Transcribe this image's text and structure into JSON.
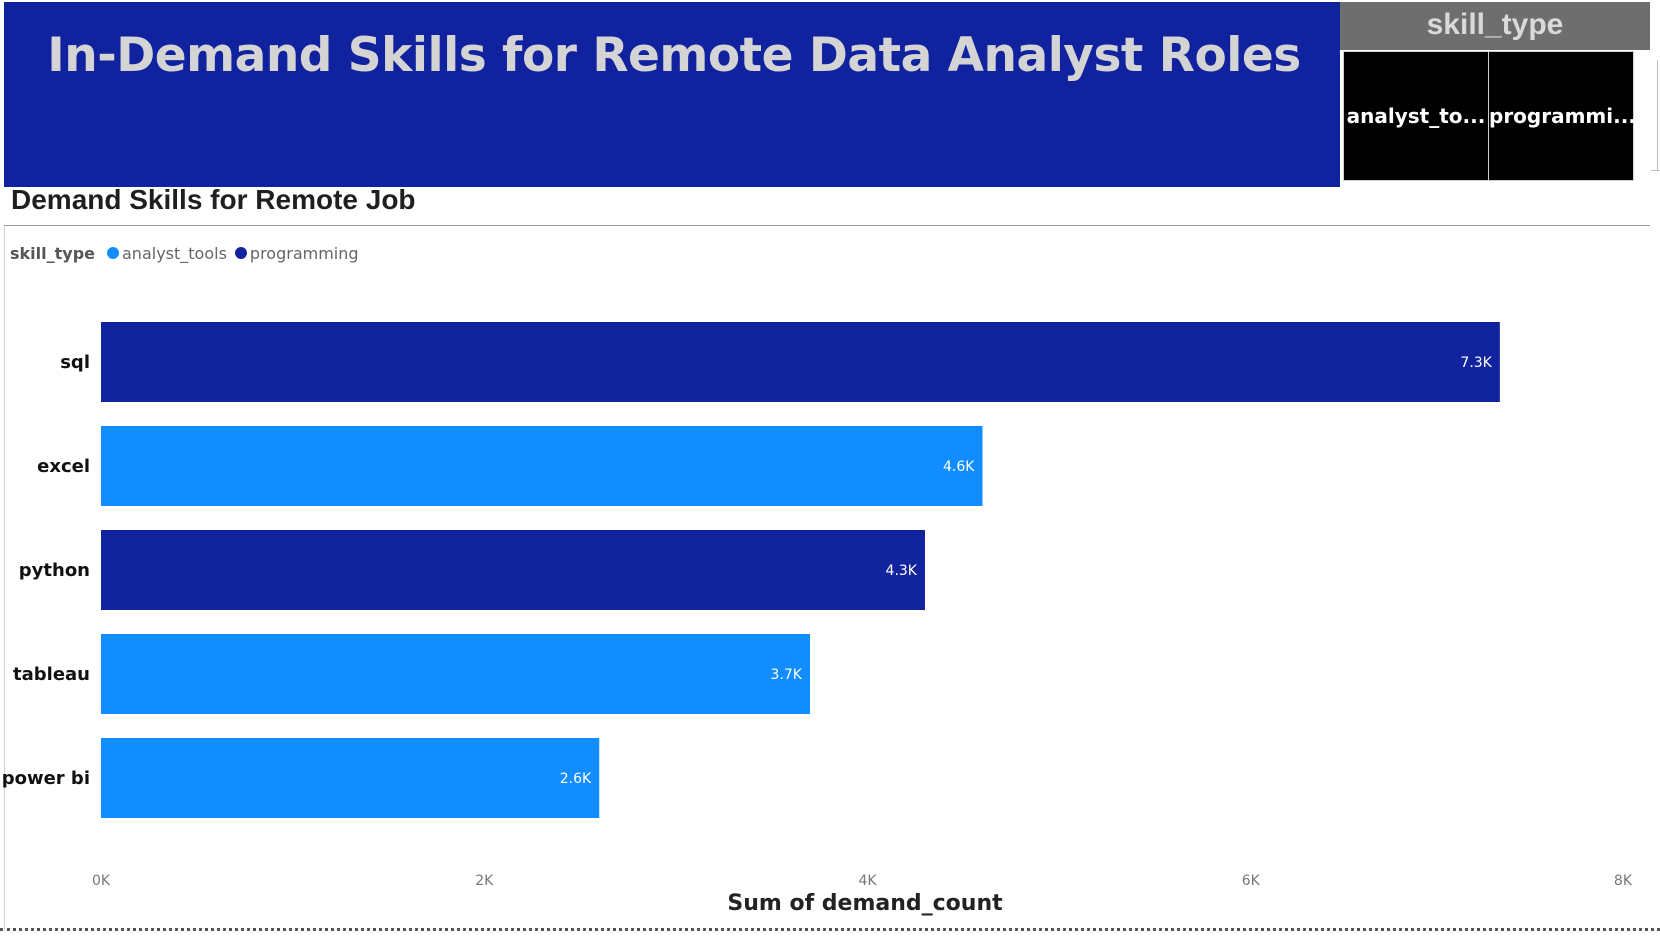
{
  "banner": {
    "title": "In-Demand Skills for Remote Data Analyst Roles"
  },
  "slicer": {
    "title": "skill_type",
    "items": [
      {
        "label": "analyst_to..."
      },
      {
        "label": "programmi..."
      }
    ]
  },
  "chart_data": {
    "type": "bar",
    "orientation": "horizontal",
    "title": "Demand Skills for Remote Job",
    "xlabel": "Sum of demand_count",
    "ylabel": "",
    "legend_title": "skill_type",
    "legend": [
      {
        "name": "analyst_tools",
        "color": "#118dff"
      },
      {
        "name": "programming",
        "color": "#12239e"
      }
    ],
    "legend_position": "top-left",
    "categories": [
      "sql",
      "excel",
      "python",
      "tableau",
      "power bi"
    ],
    "values": [
      7300,
      4600,
      4300,
      3700,
      2600
    ],
    "value_labels": [
      "7.3K",
      "4.6K",
      "4.3K",
      "3.7K",
      "2.6K"
    ],
    "bar_types": [
      "programming",
      "analyst_tools",
      "programming",
      "analyst_tools",
      "analyst_tools"
    ],
    "xlim": [
      0,
      8000
    ],
    "xticks": [
      0,
      2000,
      4000,
      6000,
      8000
    ],
    "xtick_labels": [
      "0K",
      "2K",
      "4K",
      "6K",
      "8K"
    ],
    "grid": false
  }
}
